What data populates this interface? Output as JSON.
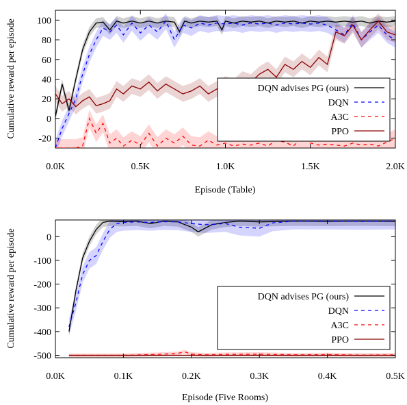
{
  "chart_data": [
    {
      "type": "line",
      "xlabel": "Episode (Table)",
      "ylabel": "Cumulative reward per episode",
      "xlim": [
        0,
        2000
      ],
      "ylim": [
        -30,
        110
      ],
      "x_ticks": [
        0,
        500,
        1000,
        1500,
        2000
      ],
      "x_tick_labels": [
        "0.0K",
        "0.5K",
        "1.0K",
        "1.5K",
        "2.0K"
      ],
      "y_ticks": [
        -20,
        0,
        20,
        40,
        60,
        80,
        100
      ],
      "y_tick_labels": [
        "-20",
        "0",
        "20",
        "40",
        "60",
        "80",
        "100"
      ],
      "legend_position": "lower-right",
      "series": [
        {
          "name": "DQN advises PG (ours)",
          "color": "#000000",
          "dash": "solid",
          "band": 5,
          "x": [
            0,
            40,
            80,
            120,
            160,
            200,
            240,
            280,
            320,
            360,
            400,
            450,
            500,
            550,
            600,
            650,
            700,
            730,
            760,
            800,
            850,
            900,
            950,
            980,
            1000,
            1050,
            1100,
            1150,
            1200,
            1250,
            1300,
            1350,
            1400,
            1450,
            1500,
            1550,
            1600,
            1650,
            1700,
            1750,
            1800,
            1850,
            1900,
            1950,
            2000
          ],
          "y": [
            2,
            35,
            8,
            40,
            70,
            88,
            97,
            98,
            90,
            99,
            97,
            99,
            97,
            99,
            97,
            99,
            98,
            88,
            99,
            97,
            99,
            98,
            99,
            90,
            99,
            97,
            99,
            98,
            99,
            97,
            99,
            98,
            99,
            97,
            99,
            98,
            99,
            98,
            99,
            98,
            99,
            97,
            99,
            98,
            99
          ]
        },
        {
          "name": "DQN",
          "color": "#0000ff",
          "dash": "dashed",
          "band": 8,
          "x": [
            0,
            40,
            80,
            120,
            160,
            200,
            240,
            280,
            320,
            360,
            400,
            450,
            500,
            550,
            600,
            650,
            700,
            750,
            800,
            850,
            900,
            950,
            1000,
            1050,
            1100,
            1150,
            1200,
            1250,
            1300,
            1350,
            1400,
            1450,
            1500,
            1550,
            1600,
            1650,
            1700,
            1750,
            1800,
            1850,
            1900,
            1950,
            2000
          ],
          "y": [
            -30,
            -10,
            5,
            20,
            45,
            65,
            80,
            92,
            88,
            95,
            85,
            97,
            87,
            95,
            88,
            99,
            80,
            95,
            92,
            97,
            95,
            97,
            96,
            97,
            95,
            97,
            96,
            97,
            95,
            97,
            96,
            97,
            96,
            97,
            95,
            90,
            85,
            97,
            80,
            88,
            95,
            85,
            80
          ]
        },
        {
          "name": "A3C",
          "color": "#ff0000",
          "dash": "dashed",
          "band": 9,
          "x": [
            0,
            40,
            80,
            120,
            160,
            200,
            240,
            280,
            320,
            360,
            400,
            450,
            500,
            550,
            600,
            650,
            700,
            750,
            800,
            850,
            900,
            950,
            1000,
            1050,
            1100,
            1150,
            1200,
            1250,
            1300,
            1350,
            1400,
            1450,
            1500,
            1550,
            1600,
            1650,
            1700,
            1750,
            1800,
            1850,
            1900,
            1950,
            2000
          ],
          "y": [
            -30,
            -30,
            -30,
            -30,
            -28,
            0,
            -15,
            -5,
            -25,
            -20,
            -28,
            -22,
            -27,
            -15,
            -28,
            -20,
            -25,
            -18,
            -27,
            -28,
            -22,
            -27,
            -25,
            -28,
            -26,
            -27,
            -25,
            -28,
            -22,
            -24,
            -28,
            -20,
            -25,
            -27,
            -26,
            -27,
            -28,
            -25,
            -27,
            -26,
            -28,
            -24,
            -20
          ]
        },
        {
          "name": "PPO",
          "color": "#8b0000",
          "dash": "solid",
          "band": 8,
          "x": [
            0,
            40,
            80,
            120,
            160,
            200,
            240,
            280,
            320,
            360,
            400,
            450,
            500,
            550,
            600,
            650,
            700,
            750,
            800,
            850,
            900,
            950,
            1000,
            1050,
            1100,
            1150,
            1200,
            1250,
            1300,
            1350,
            1400,
            1450,
            1500,
            1550,
            1600,
            1650,
            1700,
            1750,
            1800,
            1850,
            1900,
            1950,
            2000
          ],
          "y": [
            25,
            15,
            20,
            12,
            18,
            22,
            13,
            15,
            18,
            30,
            25,
            33,
            30,
            37,
            28,
            35,
            30,
            25,
            28,
            33,
            25,
            30,
            35,
            32,
            40,
            37,
            45,
            50,
            42,
            55,
            50,
            58,
            52,
            62,
            55,
            88,
            84,
            95,
            80,
            90,
            99,
            88,
            85
          ]
        }
      ]
    },
    {
      "type": "line",
      "xlabel": "Episode (Five Rooms)",
      "ylabel": "Cumulative reward per episode",
      "xlim": [
        0,
        500
      ],
      "ylim": [
        -510,
        70
      ],
      "x_ticks": [
        0,
        100,
        200,
        300,
        400,
        500
      ],
      "x_tick_labels": [
        "0.0K",
        "0.1K",
        "0.2K",
        "0.3K",
        "0.4K",
        "0.5K"
      ],
      "y_ticks": [
        -500,
        -400,
        -300,
        -200,
        -100,
        0
      ],
      "y_tick_labels": [
        "-500",
        "-400",
        "-300",
        "-200",
        "-100",
        "0"
      ],
      "legend_position": "lower-right",
      "series": [
        {
          "name": "DQN advises PG (ours)",
          "color": "#000000",
          "dash": "solid",
          "band": 20,
          "x": [
            20,
            30,
            40,
            50,
            60,
            70,
            80,
            100,
            120,
            140,
            160,
            180,
            200,
            210,
            230,
            250,
            270,
            300,
            350,
            400,
            450,
            500
          ],
          "y": [
            -400,
            -230,
            -90,
            -20,
            30,
            60,
            65,
            63,
            65,
            55,
            65,
            62,
            40,
            20,
            50,
            60,
            65,
            62,
            65,
            64,
            65,
            64
          ]
        },
        {
          "name": "DQN",
          "color": "#0000ff",
          "dash": "dashed",
          "band": 35,
          "x": [
            20,
            30,
            40,
            50,
            60,
            70,
            80,
            90,
            100,
            120,
            140,
            160,
            180,
            200,
            220,
            250,
            270,
            300,
            320,
            350,
            400,
            450,
            500
          ],
          "y": [
            -380,
            -280,
            -160,
            -100,
            -80,
            -20,
            30,
            55,
            60,
            62,
            60,
            63,
            62,
            55,
            50,
            55,
            40,
            35,
            58,
            65,
            65,
            64,
            65
          ]
        },
        {
          "name": "A3C",
          "color": "#ff0000",
          "dash": "dashed",
          "band": 8,
          "x": [
            20,
            50,
            100,
            150,
            180,
            190,
            200,
            220,
            250,
            300,
            350,
            400,
            450,
            500
          ],
          "y": [
            -500,
            -500,
            -500,
            -496,
            -492,
            -485,
            -495,
            -498,
            -496,
            -495,
            -498,
            -497,
            -499,
            -498
          ]
        },
        {
          "name": "PPO",
          "color": "#8b0000",
          "dash": "solid",
          "band": 3,
          "x": [
            20,
            100,
            200,
            300,
            400,
            500
          ],
          "y": [
            -500,
            -500,
            -500,
            -500,
            -500,
            -500
          ]
        }
      ]
    }
  ]
}
